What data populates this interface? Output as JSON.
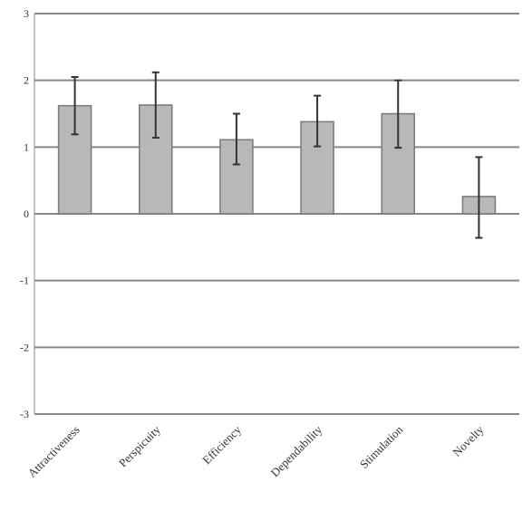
{
  "chart_data": {
    "type": "bar",
    "categories": [
      "Attractiveness",
      "Perspicuity",
      "Efficiency",
      "Dependability",
      "Stimulation",
      "Novelty"
    ],
    "values": [
      1.62,
      1.63,
      1.11,
      1.38,
      1.5,
      0.26
    ],
    "error_low": [
      1.19,
      1.14,
      0.74,
      1.01,
      0.99,
      -0.36
    ],
    "error_high": [
      2.05,
      2.12,
      1.5,
      1.77,
      2.0,
      0.85
    ],
    "ylim": [
      -3,
      3
    ],
    "yticks": [
      "-3",
      "-2",
      "-1",
      "0",
      "1",
      "2",
      "3"
    ],
    "grid": true,
    "title": "",
    "xlabel": "",
    "ylabel": "",
    "colors": {
      "bar_fill": "#b8b8b8",
      "bar_stroke": "#7a7a7a",
      "grid": "#888888",
      "error_bar": "#333333",
      "axis": "#888888"
    }
  }
}
